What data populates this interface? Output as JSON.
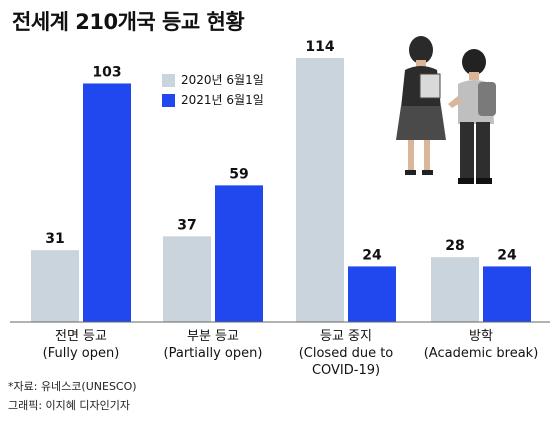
{
  "title": "전세계 210개국 등교 현황",
  "legend_placement": "top-center",
  "colors": {
    "series_2020": "#c9d4dd",
    "series_2021": "#2148ef",
    "baseline": "#666666"
  },
  "chart_data": {
    "type": "bar",
    "title": "전세계 210개국 등교 현황",
    "xlabel": "",
    "ylabel": "",
    "ylim": [
      0,
      114
    ],
    "grid": false,
    "legend": "top-center",
    "categories": [
      "전면 등교\n(Fully open)",
      "부분 등교\n(Partially open)",
      "등교 중지\n(Closed due to\nCOVID-19)",
      "방학\n(Academic break)"
    ],
    "series": [
      {
        "name": "2020년 6월1일",
        "values": [
          31,
          37,
          114,
          28
        ]
      },
      {
        "name": "2021년 6월1일",
        "values": [
          103,
          59,
          24,
          24
        ]
      }
    ]
  },
  "footer": {
    "source": "*자료: 유네스코(UNESCO)",
    "credit": "그래픽: 이지혜 디자인기자"
  },
  "illustration": {
    "icon": "students-illustration"
  }
}
